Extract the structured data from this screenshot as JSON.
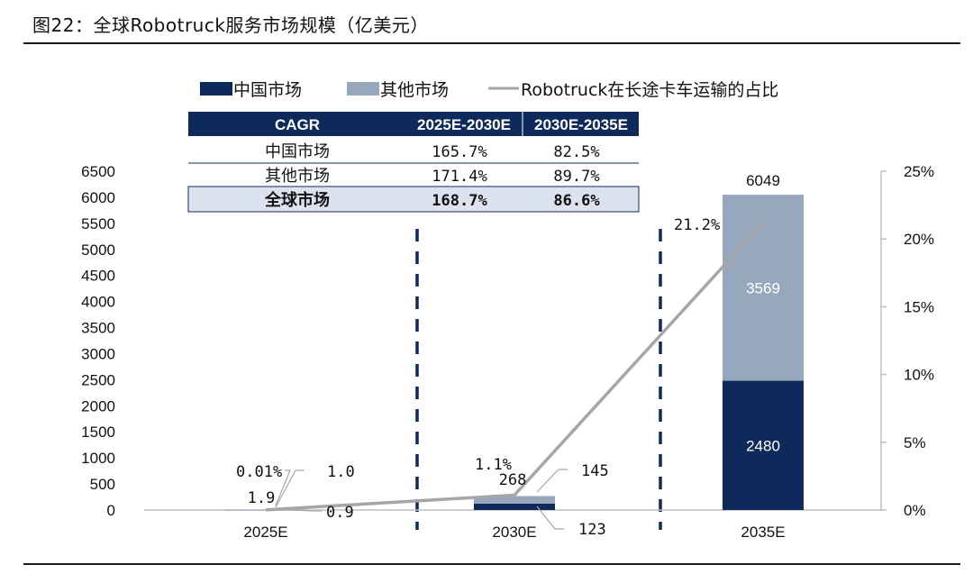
{
  "header": {
    "title": "图22：全球Robotruck服务市场规模（亿美元）"
  },
  "colors": {
    "china": "#0e2a5a",
    "other": "#97a8bd",
    "line": "#a6a6a6",
    "table_header": "#0e2a5a",
    "table_highlight": "#dce3ef"
  },
  "legend": {
    "china": "中国市场",
    "other": "其他市场",
    "line": "Robotruck在长途卡车运输的占比"
  },
  "cagr_table": {
    "headers": [
      "CAGR",
      "2025E-2030E",
      "2030E-2035E"
    ],
    "rows": [
      {
        "label": "中国市场",
        "v1": "165.7%",
        "v2": "82.5%"
      },
      {
        "label": "其他市场",
        "v1": "171.4%",
        "v2": "89.7%"
      },
      {
        "label": "全球市场",
        "v1": "168.7%",
        "v2": "86.6%"
      }
    ]
  },
  "chart_data": {
    "type": "bar",
    "stacked": true,
    "categories": [
      "2025E",
      "2030E",
      "2035E"
    ],
    "series": [
      {
        "name": "中国市场",
        "values": [
          0.9,
          123,
          2480
        ]
      },
      {
        "name": "其他市场",
        "values": [
          1.0,
          145,
          3569
        ]
      }
    ],
    "totals": [
      1.9,
      268,
      6049
    ],
    "line_series": {
      "name": "Robotruck在长途卡车运输的占比",
      "values": [
        0.0001,
        0.011,
        0.212
      ],
      "axis": "right"
    },
    "left_axis": {
      "min": 0,
      "max": 6500,
      "step": 500
    },
    "right_axis": {
      "min": 0,
      "max": 0.25,
      "step": 0.05
    },
    "value_labels": {
      "total": [
        "1.9",
        "268",
        "6049"
      ],
      "china": [
        "0.9",
        "123",
        "2480"
      ],
      "other": [
        "1.0",
        "145",
        "3569"
      ],
      "line": [
        "0.01%",
        "1.1%",
        "21.2%"
      ]
    },
    "left_ticks": [
      "0",
      "500",
      "1000",
      "1500",
      "2000",
      "2500",
      "3000",
      "3500",
      "4000",
      "4500",
      "5000",
      "5500",
      "6000",
      "6500"
    ],
    "right_ticks": [
      "0%",
      "5%",
      "10%",
      "15%",
      "20%",
      "25%"
    ],
    "grid": false,
    "legend_position": "top"
  }
}
